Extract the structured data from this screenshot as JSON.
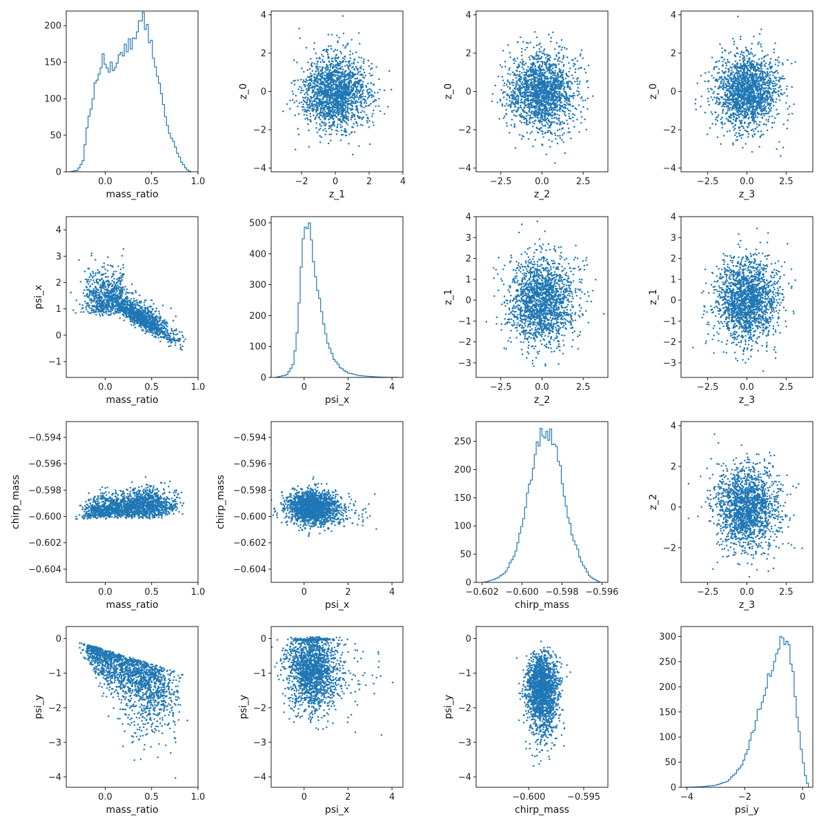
{
  "figure": {
    "title": "",
    "style": {
      "series_color": "#1f77b4",
      "axes_color": "#000000",
      "background": "#ffffff"
    }
  },
  "chart_data": [
    {
      "type": "histogram",
      "row": 0,
      "col": 0,
      "xlabel": "mass_ratio",
      "ylabel": "",
      "xlim": [
        -0.42,
        1.0
      ],
      "ylim": [
        0,
        220
      ],
      "xticks": [
        0.0,
        0.5,
        1.0
      ],
      "xtick_labels": [
        "0.0",
        "0.5",
        "1.0"
      ],
      "yticks": [
        0,
        50,
        100,
        150,
        200
      ],
      "ytick_labels": [
        "0",
        "50",
        "100",
        "150",
        "200"
      ],
      "hist": {
        "min": -0.38,
        "max": 0.92,
        "bins": 60,
        "peak": 208,
        "shape": [
          [
            -0.38,
            0
          ],
          [
            -0.3,
            2
          ],
          [
            -0.24,
            14
          ],
          [
            -0.2,
            55
          ],
          [
            -0.14,
            98
          ],
          [
            -0.08,
            135
          ],
          [
            -0.02,
            152
          ],
          [
            0.05,
            140
          ],
          [
            0.12,
            150
          ],
          [
            0.2,
            165
          ],
          [
            0.28,
            175
          ],
          [
            0.34,
            190
          ],
          [
            0.4,
            205
          ],
          [
            0.45,
            196
          ],
          [
            0.5,
            175
          ],
          [
            0.55,
            140
          ],
          [
            0.6,
            105
          ],
          [
            0.65,
            72
          ],
          [
            0.7,
            52
          ],
          [
            0.76,
            32
          ],
          [
            0.82,
            14
          ],
          [
            0.88,
            3
          ],
          [
            0.92,
            0
          ]
        ]
      }
    },
    {
      "type": "scatter",
      "row": 0,
      "col": 1,
      "xlabel": "z_1",
      "ylabel": "z_0",
      "xlim": [
        -3.8,
        4.0
      ],
      "ylim": [
        -4.2,
        4.2
      ],
      "xticks": [
        -2,
        0,
        2,
        4
      ],
      "xtick_labels": [
        "−2",
        "0",
        "2",
        "4"
      ],
      "yticks": [
        -4,
        -2,
        0,
        2,
        4
      ],
      "ytick_labels": [
        "−4",
        "−2",
        "0",
        "2",
        "4"
      ],
      "dist": {
        "kind": "gauss2",
        "mx": 0,
        "sx": 1,
        "my": 0,
        "sy": 1,
        "n": 1800
      }
    },
    {
      "type": "scatter",
      "row": 0,
      "col": 2,
      "xlabel": "z_2",
      "ylabel": "z_0",
      "xlim": [
        -4.0,
        4.0
      ],
      "ylim": [
        -4.2,
        4.2
      ],
      "xticks": [
        -2.5,
        0.0,
        2.5
      ],
      "xtick_labels": [
        "−2.5",
        "0.0",
        "2.5"
      ],
      "yticks": [
        -4,
        -2,
        0,
        2,
        4
      ],
      "ytick_labels": [
        "−4",
        "−2",
        "0",
        "2",
        "4"
      ],
      "dist": {
        "kind": "gauss2",
        "mx": 0,
        "sx": 1,
        "my": 0,
        "sy": 1,
        "n": 1800
      }
    },
    {
      "type": "scatter",
      "row": 0,
      "col": 3,
      "xlabel": "z_3",
      "ylabel": "z_0",
      "xlim": [
        -4.2,
        4.2
      ],
      "ylim": [
        -4.2,
        4.2
      ],
      "xticks": [
        -2.5,
        0.0,
        2.5
      ],
      "xtick_labels": [
        "−2.5",
        "0.0",
        "2.5"
      ],
      "yticks": [
        -4,
        -2,
        0,
        2,
        4
      ],
      "ytick_labels": [
        "−4",
        "−2",
        "0",
        "2",
        "4"
      ],
      "dist": {
        "kind": "gauss2",
        "mx": 0,
        "sx": 1,
        "my": 0,
        "sy": 1,
        "n": 1800
      }
    },
    {
      "type": "scatter",
      "row": 1,
      "col": 0,
      "xlabel": "mass_ratio",
      "ylabel": "psi_x",
      "xlim": [
        -0.42,
        1.0
      ],
      "ylim": [
        -1.6,
        4.5
      ],
      "xticks": [
        0.0,
        0.5,
        1.0
      ],
      "xtick_labels": [
        "0.0",
        "0.5",
        "1.0"
      ],
      "yticks": [
        -1,
        0,
        1,
        2,
        3,
        4
      ],
      "ytick_labels": [
        "−1",
        "0",
        "1",
        "2",
        "3",
        "4"
      ],
      "dist": {
        "kind": "massratio_psix",
        "n": 1800
      }
    },
    {
      "type": "histogram",
      "row": 1,
      "col": 1,
      "xlabel": "psi_x",
      "ylabel": "",
      "xlim": [
        -1.5,
        4.5
      ],
      "ylim": [
        0,
        520
      ],
      "xticks": [
        0,
        2,
        4
      ],
      "xtick_labels": [
        "0",
        "2",
        "4"
      ],
      "yticks": [
        0,
        100,
        200,
        300,
        400,
        500
      ],
      "ytick_labels": [
        "0",
        "100",
        "200",
        "300",
        "400",
        "500"
      ],
      "hist": {
        "min": -1.3,
        "max": 4.3,
        "bins": 60,
        "peak": 500,
        "shape": [
          [
            -1.3,
            0
          ],
          [
            -0.8,
            8
          ],
          [
            -0.5,
            40
          ],
          [
            -0.3,
            150
          ],
          [
            -0.15,
            320
          ],
          [
            -0.05,
            450
          ],
          [
            0.05,
            495
          ],
          [
            0.2,
            480
          ],
          [
            0.35,
            430
          ],
          [
            0.5,
            350
          ],
          [
            0.7,
            250
          ],
          [
            0.9,
            170
          ],
          [
            1.1,
            110
          ],
          [
            1.3,
            65
          ],
          [
            1.6,
            35
          ],
          [
            2.0,
            15
          ],
          [
            2.5,
            6
          ],
          [
            3.0,
            3
          ],
          [
            3.5,
            1
          ],
          [
            4.3,
            0
          ]
        ]
      }
    },
    {
      "type": "scatter",
      "row": 1,
      "col": 2,
      "xlabel": "z_2",
      "ylabel": "z_1",
      "xlim": [
        -4.0,
        4.0
      ],
      "ylim": [
        -3.7,
        4.0
      ],
      "xticks": [
        -2.5,
        0.0,
        2.5
      ],
      "xtick_labels": [
        "−2.5",
        "0.0",
        "2.5"
      ],
      "yticks": [
        -3,
        -2,
        -1,
        0,
        1,
        2,
        3,
        4
      ],
      "ytick_labels": [
        "−3",
        "−2",
        "−1",
        "0",
        "1",
        "2",
        "3",
        "4"
      ],
      "dist": {
        "kind": "gauss2",
        "mx": 0,
        "sx": 1,
        "my": 0,
        "sy": 1,
        "n": 1800
      }
    },
    {
      "type": "scatter",
      "row": 1,
      "col": 3,
      "xlabel": "z_3",
      "ylabel": "z_1",
      "xlim": [
        -4.2,
        4.2
      ],
      "ylim": [
        -3.7,
        4.0
      ],
      "xticks": [
        -2.5,
        0.0,
        2.5
      ],
      "xtick_labels": [
        "−2.5",
        "0.0",
        "2.5"
      ],
      "yticks": [
        -3,
        -2,
        -1,
        0,
        1,
        2,
        3,
        4
      ],
      "ytick_labels": [
        "−3",
        "−2",
        "−1",
        "0",
        "1",
        "2",
        "3",
        "4"
      ],
      "dist": {
        "kind": "gauss2",
        "mx": 0,
        "sx": 1,
        "my": 0,
        "sy": 1,
        "n": 1800
      }
    },
    {
      "type": "scatter",
      "row": 2,
      "col": 0,
      "xlabel": "mass_ratio",
      "ylabel": "chirp_mass",
      "xlim": [
        -0.42,
        1.0
      ],
      "ylim": [
        -0.605,
        -0.5928
      ],
      "xticks": [
        0.0,
        0.5,
        1.0
      ],
      "xtick_labels": [
        "0.0",
        "0.5",
        "1.0"
      ],
      "yticks": [
        -0.604,
        -0.602,
        -0.6,
        -0.598,
        -0.596,
        -0.594
      ],
      "ytick_labels": [
        "−0.604",
        "−0.602",
        "−0.600",
        "−0.598",
        "−0.596",
        "−0.594"
      ],
      "dist": {
        "kind": "massratio_chirp",
        "n": 1800
      }
    },
    {
      "type": "scatter",
      "row": 2,
      "col": 1,
      "xlabel": "psi_x",
      "ylabel": "chirp_mass",
      "xlim": [
        -1.5,
        4.5
      ],
      "ylim": [
        -0.605,
        -0.5928
      ],
      "xticks": [
        0,
        2,
        4
      ],
      "xtick_labels": [
        "0",
        "2",
        "4"
      ],
      "yticks": [
        -0.604,
        -0.602,
        -0.6,
        -0.598,
        -0.596,
        -0.594
      ],
      "ytick_labels": [
        "−0.604",
        "−0.602",
        "−0.600",
        "−0.598",
        "−0.596",
        "−0.594"
      ],
      "dist": {
        "kind": "psix_chirp",
        "n": 1800
      }
    },
    {
      "type": "histogram",
      "row": 2,
      "col": 2,
      "xlabel": "chirp_mass",
      "ylabel": "",
      "xlim": [
        -0.6023,
        -0.5957
      ],
      "ylim": [
        0,
        285
      ],
      "xticks": [
        -0.602,
        -0.6,
        -0.598,
        -0.596
      ],
      "xtick_labels": [
        "−0.602",
        "−0.600",
        "−0.598",
        "−0.596"
      ],
      "yticks": [
        0,
        50,
        100,
        150,
        200,
        250
      ],
      "ytick_labels": [
        "0",
        "50",
        "100",
        "150",
        "200",
        "250"
      ],
      "hist": {
        "min": -0.6019,
        "max": -0.5961,
        "bins": 60,
        "peak": 272,
        "shape": [
          [
            -0.6019,
            0
          ],
          [
            -0.6013,
            6
          ],
          [
            -0.6008,
            18
          ],
          [
            -0.6003,
            55
          ],
          [
            -0.5999,
            120
          ],
          [
            -0.5995,
            190
          ],
          [
            -0.5992,
            240
          ],
          [
            -0.5989,
            268
          ],
          [
            -0.5986,
            262
          ],
          [
            -0.5983,
            230
          ],
          [
            -0.598,
            180
          ],
          [
            -0.5977,
            120
          ],
          [
            -0.5974,
            72
          ],
          [
            -0.597,
            35
          ],
          [
            -0.5966,
            10
          ],
          [
            -0.5961,
            0
          ]
        ]
      }
    },
    {
      "type": "scatter",
      "row": 2,
      "col": 3,
      "xlabel": "z_3",
      "ylabel": "z_2",
      "xlim": [
        -4.2,
        4.2
      ],
      "ylim": [
        -3.7,
        4.2
      ],
      "xticks": [
        -2.5,
        0.0,
        2.5
      ],
      "xtick_labels": [
        "−2.5",
        "0.0",
        "2.5"
      ],
      "yticks": [
        -2,
        0,
        2,
        4
      ],
      "ytick_labels": [
        "−2",
        "0",
        "2",
        "4"
      ],
      "dist": {
        "kind": "gauss2",
        "mx": 0,
        "sx": 1,
        "my": 0,
        "sy": 1,
        "n": 1800
      }
    },
    {
      "type": "scatter",
      "row": 3,
      "col": 0,
      "xlabel": "mass_ratio",
      "ylabel": "psi_y",
      "xlim": [
        -0.42,
        1.0
      ],
      "ylim": [
        -4.3,
        0.35
      ],
      "xticks": [
        0.0,
        0.5,
        1.0
      ],
      "xtick_labels": [
        "0.0",
        "0.5",
        "1.0"
      ],
      "yticks": [
        -4,
        -3,
        -2,
        -1,
        0
      ],
      "ytick_labels": [
        "−4",
        "−3",
        "−2",
        "−1",
        "0"
      ],
      "dist": {
        "kind": "massratio_psiy",
        "n": 1800
      }
    },
    {
      "type": "scatter",
      "row": 3,
      "col": 1,
      "xlabel": "psi_x",
      "ylabel": "psi_y",
      "xlim": [
        -1.5,
        4.5
      ],
      "ylim": [
        -4.3,
        0.35
      ],
      "xticks": [
        0,
        2,
        4
      ],
      "xtick_labels": [
        "0",
        "2",
        "4"
      ],
      "yticks": [
        -4,
        -3,
        -2,
        -1,
        0
      ],
      "ytick_labels": [
        "−4",
        "−3",
        "−2",
        "−1",
        "0"
      ],
      "dist": {
        "kind": "psix_psiy",
        "n": 1800
      }
    },
    {
      "type": "scatter",
      "row": 3,
      "col": 2,
      "xlabel": "chirp_mass",
      "ylabel": "psi_y",
      "xlim": [
        -0.6048,
        -0.5928
      ],
      "ylim": [
        -4.3,
        0.35
      ],
      "xticks": [
        -0.6,
        -0.595
      ],
      "xtick_labels": [
        "−0.600",
        "−0.595"
      ],
      "yticks": [
        -4,
        -3,
        -2,
        -1,
        0
      ],
      "ytick_labels": [
        "−4",
        "−3",
        "−2",
        "−1",
        "0"
      ],
      "dist": {
        "kind": "chirp_psiy",
        "n": 1800
      }
    },
    {
      "type": "histogram",
      "row": 3,
      "col": 3,
      "xlabel": "psi_y",
      "ylabel": "",
      "xlim": [
        -4.2,
        0.35
      ],
      "ylim": [
        0,
        320
      ],
      "xticks": [
        -4,
        -2,
        0
      ],
      "xtick_labels": [
        "−4",
        "−2",
        "0"
      ],
      "yticks": [
        0,
        50,
        100,
        150,
        200,
        250,
        300
      ],
      "ytick_labels": [
        "0",
        "50",
        "100",
        "150",
        "200",
        "250",
        "300"
      ],
      "hist": {
        "min": -4.05,
        "max": 0.2,
        "bins": 60,
        "peak": 300,
        "shape": [
          [
            -4.05,
            0
          ],
          [
            -3.5,
            1
          ],
          [
            -3.0,
            4
          ],
          [
            -2.6,
            12
          ],
          [
            -2.3,
            28
          ],
          [
            -2.0,
            55
          ],
          [
            -1.8,
            95
          ],
          [
            -1.6,
            135
          ],
          [
            -1.4,
            170
          ],
          [
            -1.2,
            210
          ],
          [
            -1.0,
            255
          ],
          [
            -0.85,
            285
          ],
          [
            -0.7,
            300
          ],
          [
            -0.55,
            290
          ],
          [
            -0.4,
            250
          ],
          [
            -0.25,
            180
          ],
          [
            -0.1,
            100
          ],
          [
            0.05,
            35
          ],
          [
            0.2,
            0
          ]
        ]
      }
    }
  ]
}
